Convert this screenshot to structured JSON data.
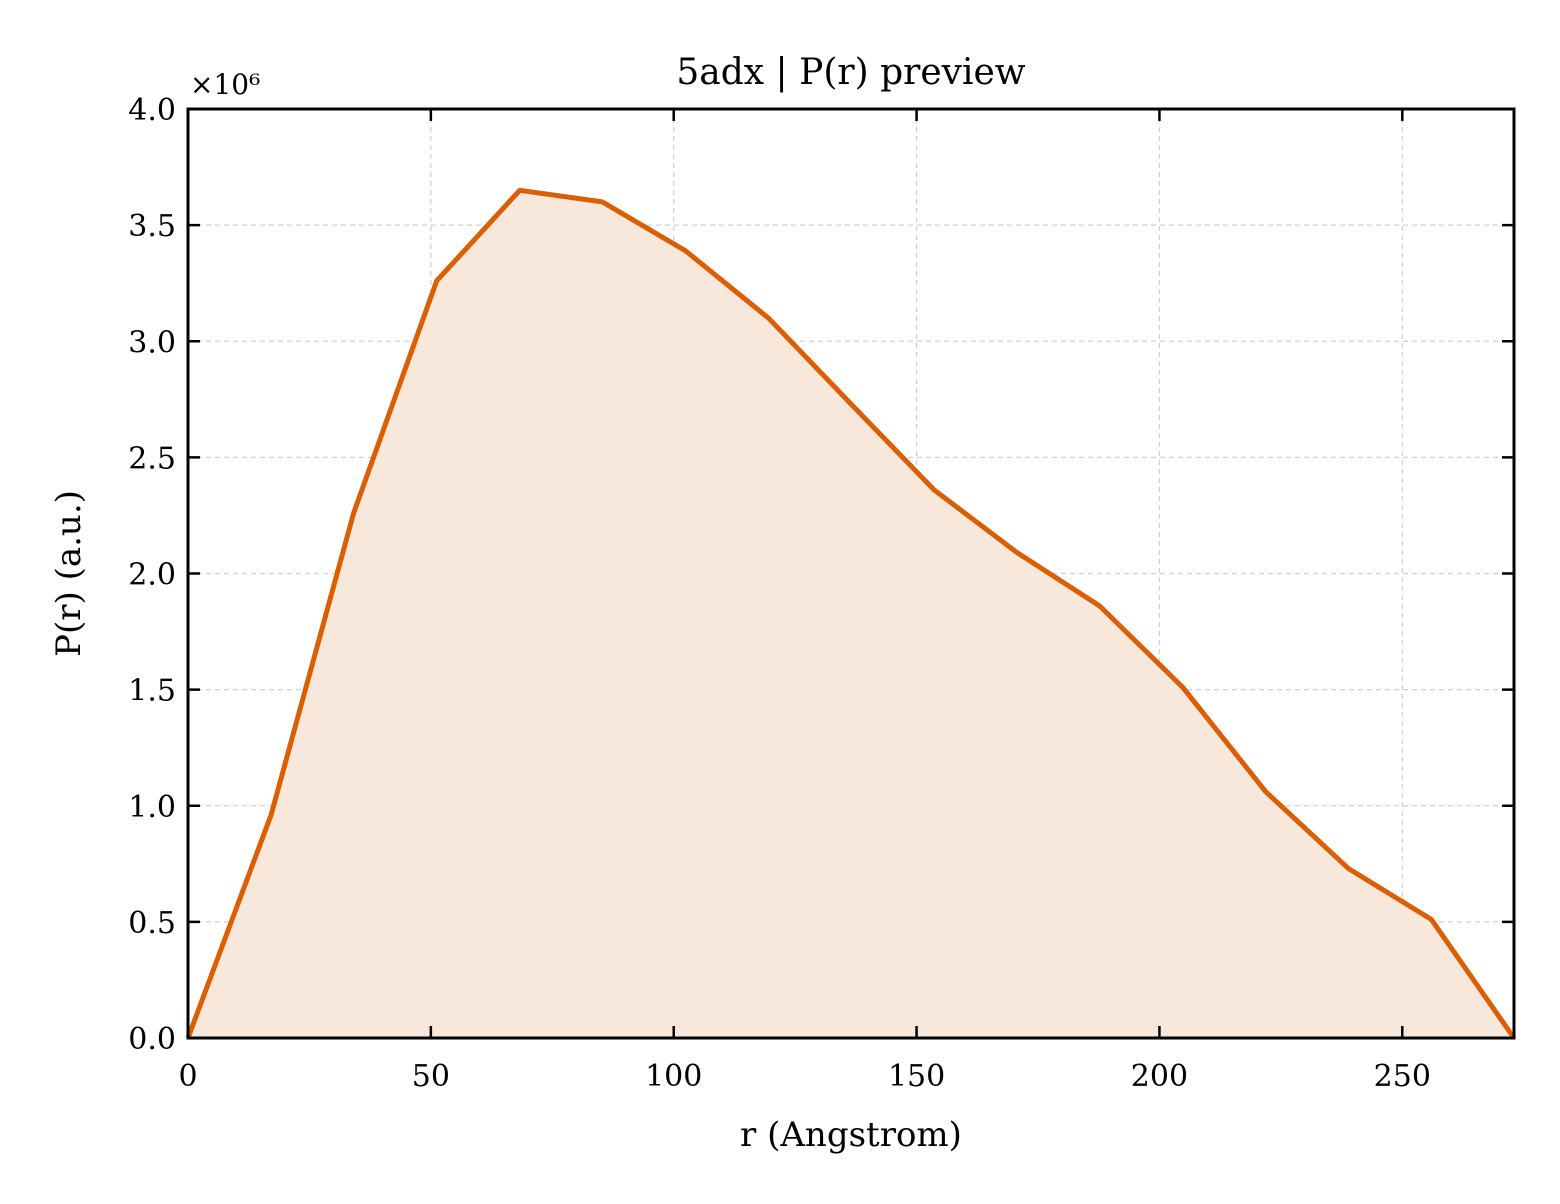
{
  "chart_data": {
    "type": "area",
    "title": "5adx | P(r) preview",
    "xlabel": "r (Angstrom)",
    "ylabel": "P(r) (a.u.)",
    "y_offset_text": "×10⁶",
    "y_scale_factor": 1000000,
    "xlim": [
      0,
      273
    ],
    "ylim": [
      0,
      4.0
    ],
    "xticks": [
      0,
      50,
      100,
      150,
      200,
      250
    ],
    "xtick_labels": [
      "0",
      "50",
      "100",
      "150",
      "200",
      "250"
    ],
    "yticks": [
      0.0,
      0.5,
      1.0,
      1.5,
      2.0,
      2.5,
      3.0,
      3.5,
      4.0
    ],
    "ytick_labels": [
      "0.0",
      "0.5",
      "1.0",
      "1.5",
      "2.0",
      "2.5",
      "3.0",
      "3.5",
      "4.0"
    ],
    "grid": true,
    "legend": "none",
    "series": [
      {
        "color": "#d95f02",
        "fill_color": "#f8e8dc",
        "x": [
          0,
          17.1,
          34.1,
          51.2,
          68.3,
          85.3,
          102.4,
          119.5,
          136.5,
          153.6,
          170.7,
          187.7,
          204.8,
          221.9,
          238.9,
          256.0,
          273.0
        ],
        "y": [
          0.0,
          0.96,
          2.26,
          3.26,
          3.65,
          3.6,
          3.39,
          3.1,
          2.73,
          2.36,
          2.09,
          1.86,
          1.51,
          1.06,
          0.73,
          0.51,
          0.0
        ]
      }
    ]
  }
}
